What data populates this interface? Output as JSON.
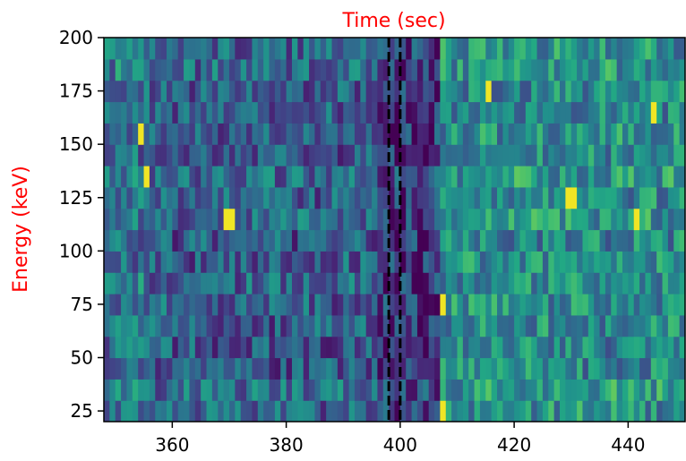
{
  "chart_data": {
    "type": "heatmap",
    "title": "",
    "xlabel": "Time (sec)",
    "ylabel": "Energy (keV)",
    "xlabel_position": "top",
    "label_color": "#ff0000",
    "colormap": "viridis",
    "colorbar": false,
    "xlim": [
      348,
      450
    ],
    "ylim": [
      20,
      200
    ],
    "x_ticks": [
      360,
      380,
      400,
      420,
      440
    ],
    "y_ticks": [
      25,
      50,
      75,
      100,
      125,
      150,
      175,
      200
    ],
    "time_bin_width_sec": 1,
    "energy_bin_width_kev": 10,
    "energy_bin_edges": [
      20,
      30,
      40,
      50,
      60,
      70,
      80,
      90,
      100,
      110,
      120,
      130,
      140,
      150,
      160,
      170,
      180,
      190,
      200
    ],
    "vertical_lines": [
      {
        "x": 398,
        "style": "dashed",
        "color": "#000000"
      },
      {
        "x": 400,
        "style": "dashed",
        "color": "#000000"
      }
    ],
    "grid": false,
    "legend": "none"
  }
}
